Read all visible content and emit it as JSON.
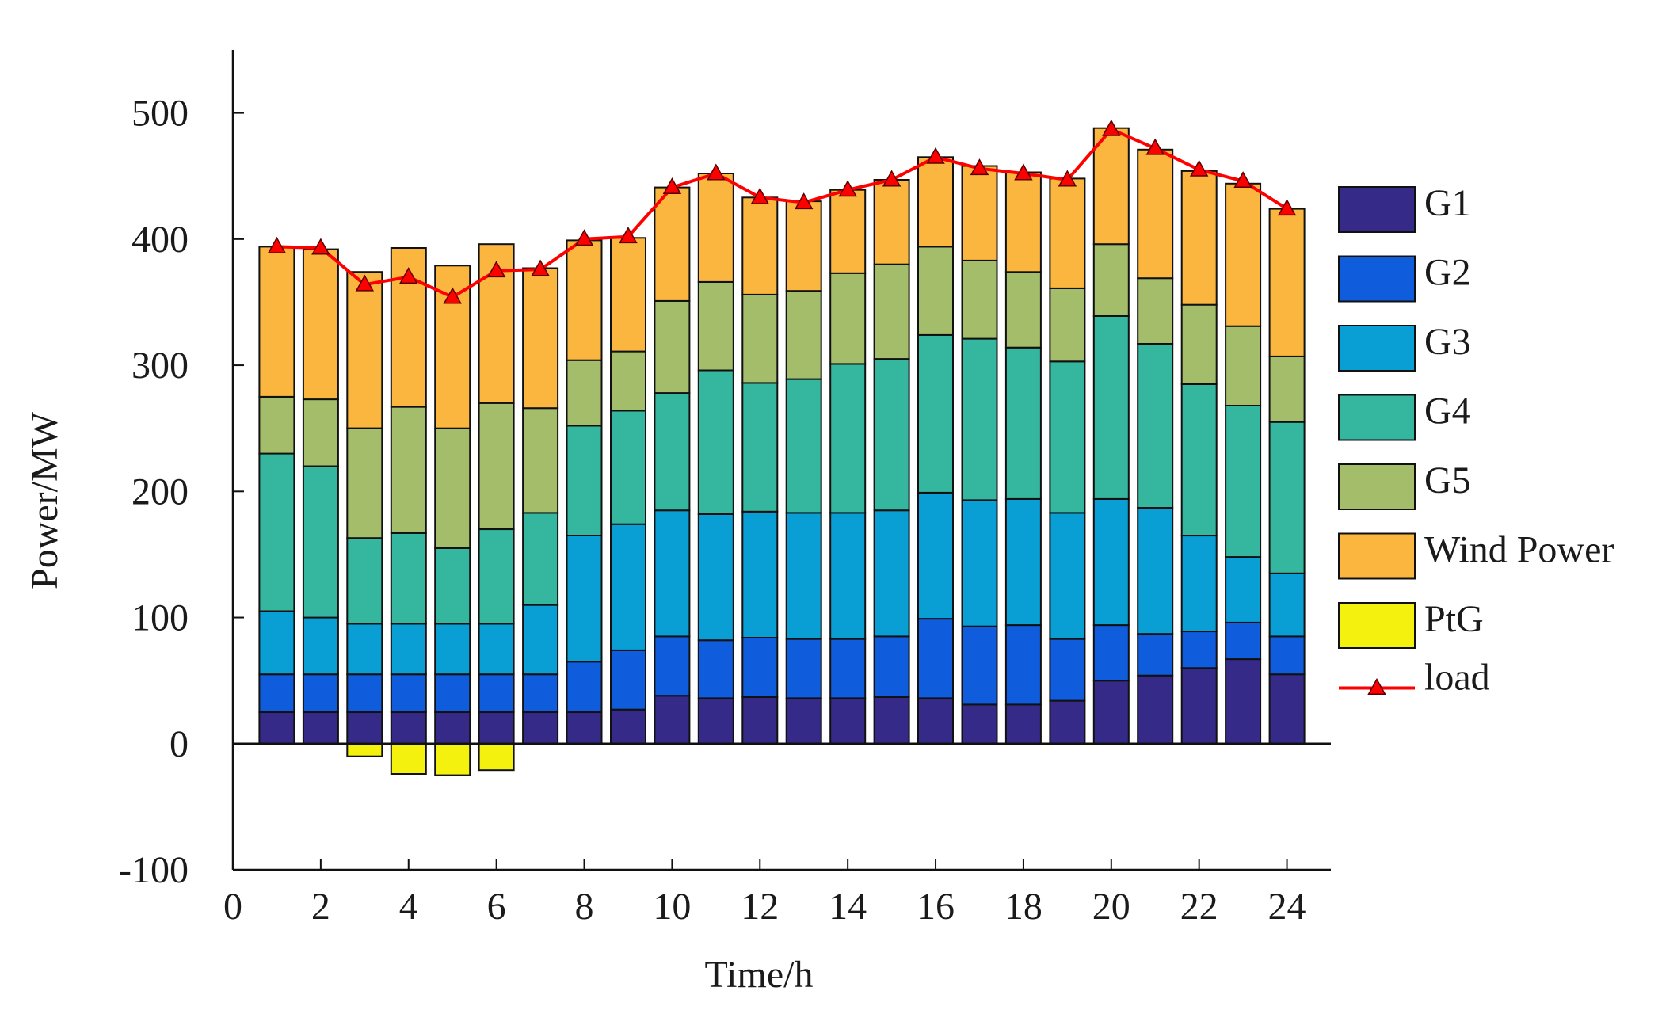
{
  "chart_data": {
    "type": "bar",
    "stacked": true,
    "title": "",
    "xlabel": "Time/h",
    "ylabel": "Power/MW",
    "xlim": [
      0,
      25
    ],
    "ylim": [
      -100,
      550
    ],
    "xticks": [
      0,
      2,
      4,
      6,
      8,
      10,
      12,
      14,
      16,
      18,
      20,
      22,
      24
    ],
    "yticks": [
      -100,
      0,
      100,
      200,
      300,
      400,
      500
    ],
    "legend_position": "right",
    "categories": [
      1,
      2,
      3,
      4,
      5,
      6,
      7,
      8,
      9,
      10,
      11,
      12,
      13,
      14,
      15,
      16,
      17,
      18,
      19,
      20,
      21,
      22,
      23,
      24
    ],
    "series": [
      {
        "name": "G1",
        "color": "#352a87",
        "values": [
          25,
          25,
          25,
          25,
          25,
          25,
          25,
          25,
          27,
          38,
          36,
          37,
          36,
          36,
          37,
          36,
          31,
          31,
          34,
          50,
          54,
          60,
          67,
          55
        ]
      },
      {
        "name": "G2",
        "color": "#0f5cdd",
        "values": [
          30,
          30,
          30,
          30,
          30,
          30,
          30,
          40,
          47,
          47,
          46,
          47,
          47,
          47,
          48,
          63,
          62,
          63,
          49,
          44,
          33,
          29,
          29,
          30
        ]
      },
      {
        "name": "G3",
        "color": "#099fd4",
        "values": [
          50,
          45,
          40,
          40,
          40,
          40,
          55,
          100,
          100,
          100,
          100,
          100,
          100,
          100,
          100,
          100,
          100,
          100,
          100,
          100,
          100,
          76,
          52,
          50
        ]
      },
      {
        "name": "G4",
        "color": "#35b79f",
        "values": [
          125,
          120,
          68,
          72,
          60,
          75,
          73,
          87,
          90,
          93,
          114,
          102,
          106,
          118,
          120,
          125,
          128,
          120,
          120,
          145,
          130,
          120,
          120,
          120
        ]
      },
      {
        "name": "G5",
        "color": "#a3bd6a",
        "values": [
          45,
          53,
          87,
          100,
          95,
          100,
          83,
          52,
          47,
          73,
          70,
          70,
          70,
          72,
          75,
          70,
          62,
          60,
          58,
          57,
          52,
          63,
          63,
          52
        ]
      },
      {
        "name": "Wind Power",
        "color": "#fbb63f",
        "values": [
          119,
          119,
          124,
          126,
          129,
          126,
          111,
          95,
          90,
          90,
          86,
          77,
          71,
          66,
          67,
          71,
          75,
          79,
          87,
          92,
          102,
          106,
          113,
          117
        ]
      },
      {
        "name": "PtG",
        "color": "#f3f10d",
        "values": [
          0,
          0,
          -10,
          -24,
          -25,
          -21,
          0,
          0,
          0,
          0,
          0,
          0,
          0,
          0,
          0,
          0,
          0,
          0,
          0,
          0,
          0,
          0,
          0,
          0
        ]
      }
    ],
    "line_series": {
      "name": "load",
      "color": "#ff0000",
      "marker": "triangle",
      "values": [
        394,
        393,
        364,
        370,
        354,
        375,
        376,
        400,
        402,
        441,
        452,
        433,
        429,
        439,
        447,
        465,
        456,
        452,
        447,
        487,
        472,
        455,
        446,
        424
      ]
    }
  }
}
